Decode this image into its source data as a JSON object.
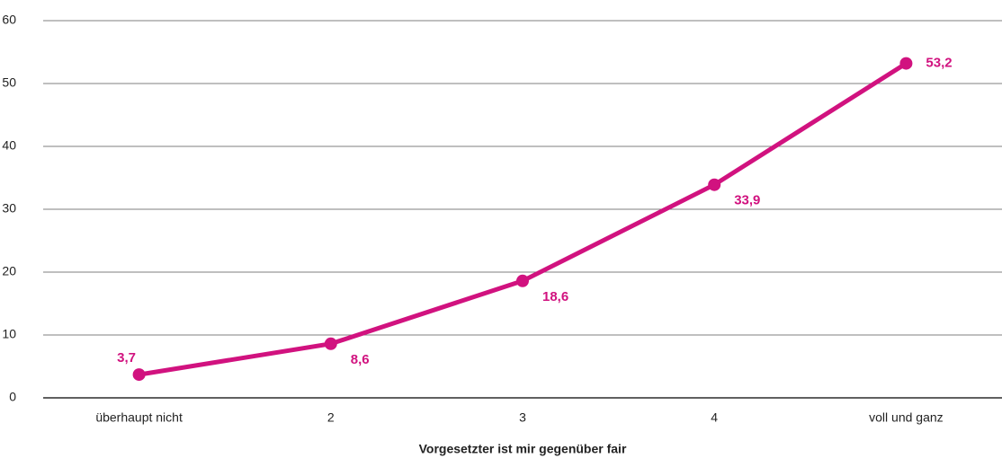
{
  "chart_data": {
    "type": "line",
    "x_label": "Vorgesetzter ist mir gegenüber fair",
    "categories": [
      "überhaupt nicht",
      "2",
      "3",
      "4",
      "voll und ganz"
    ],
    "series": [
      {
        "name": null,
        "color": "#d1127f",
        "values": [
          3.7,
          8.6,
          18.6,
          33.9,
          53.2
        ],
        "value_labels": [
          "3,7",
          "8,6",
          "18,6",
          "33,9",
          "53,2"
        ]
      }
    ],
    "ylim": [
      0,
      60
    ],
    "yticks": [
      0,
      10,
      20,
      30,
      40,
      50,
      60
    ],
    "grid": true
  }
}
